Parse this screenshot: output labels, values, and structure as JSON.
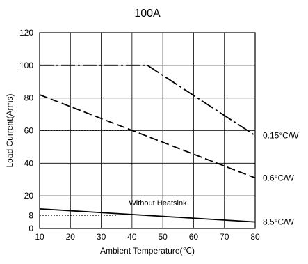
{
  "chart_data": {
    "type": "line",
    "title": "100A",
    "xlabel": "Ambient Temperature(℃)",
    "ylabel": "Load Current(Arms)",
    "xlim": [
      10,
      80
    ],
    "ylim": [
      0,
      120
    ],
    "x_ticks": [
      10,
      20,
      30,
      40,
      50,
      60,
      70,
      80
    ],
    "y_ticks": [
      0,
      8,
      20,
      40,
      60,
      80,
      100,
      120
    ],
    "grid": true,
    "series": [
      {
        "name": "0.15°C/W",
        "style": "dash-dot",
        "points": [
          [
            10,
            100
          ],
          [
            45,
            100
          ],
          [
            80,
            57
          ]
        ]
      },
      {
        "name": "0.6°C/W",
        "style": "dashed",
        "points": [
          [
            10,
            82
          ],
          [
            80,
            31
          ]
        ]
      },
      {
        "name": "8.5°C/W",
        "style": "solid",
        "points": [
          [
            10,
            12
          ],
          [
            80,
            4
          ]
        ]
      }
    ],
    "reference_lines": [
      {
        "y": 60,
        "x_from": 10,
        "x_to": 40
      },
      {
        "y": 8,
        "x_from": 10,
        "x_to": 35
      }
    ],
    "annotations": [
      {
        "text": "Without Heatsink",
        "x": 39,
        "y": 14
      }
    ]
  }
}
